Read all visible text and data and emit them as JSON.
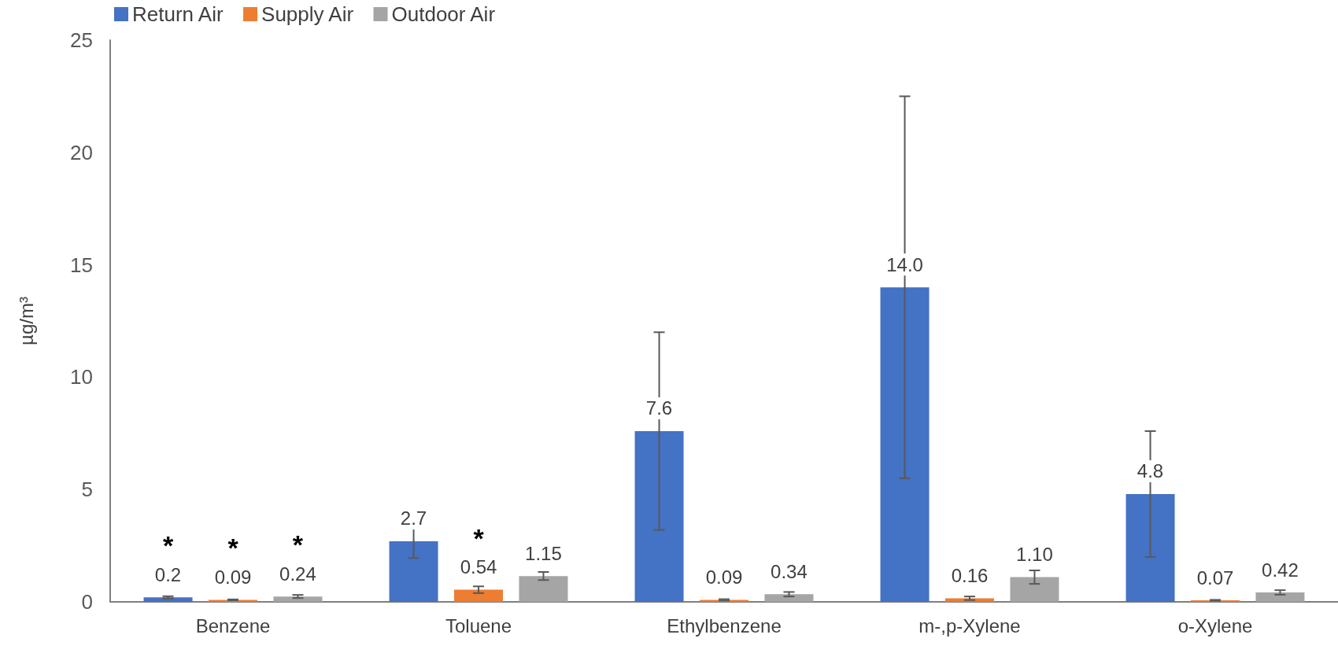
{
  "chart_data": {
    "type": "bar",
    "ylabel": "µg/m³",
    "categories": [
      "Benzene",
      "Toluene",
      "Ethylbenzene",
      "m-,p-Xylene",
      "o-Xylene"
    ],
    "series": [
      {
        "name": "Return Air",
        "color": "#4472c4",
        "values": [
          0.2,
          2.7,
          7.6,
          14.0,
          4.8
        ],
        "errors": [
          0.05,
          0.75,
          4.4,
          8.5,
          2.8
        ],
        "value_labels": [
          "*\n0.2",
          "2.7",
          "7.6",
          "14.0",
          "4.8"
        ]
      },
      {
        "name": "Supply Air",
        "color": "#ed7d31",
        "values": [
          0.09,
          0.54,
          0.09,
          0.16,
          0.07
        ],
        "errors": [
          0.02,
          0.15,
          0.03,
          0.08,
          0.02
        ],
        "value_labels": [
          "*\n0.09",
          "*\n0.54",
          "0.09",
          "0.16",
          "0.07"
        ]
      },
      {
        "name": "Outdoor Air",
        "color": "#a5a5a5",
        "values": [
          0.24,
          1.15,
          0.34,
          1.1,
          0.42
        ],
        "errors": [
          0.07,
          0.18,
          0.1,
          0.3,
          0.1
        ],
        "value_labels": [
          "*\n0.24",
          "1.15",
          "0.34",
          "1.10",
          "0.42"
        ]
      }
    ],
    "ylim": [
      0,
      25
    ],
    "yticks": [
      0,
      5,
      10,
      15,
      20,
      25
    ],
    "grid": false,
    "legend": "top left"
  }
}
